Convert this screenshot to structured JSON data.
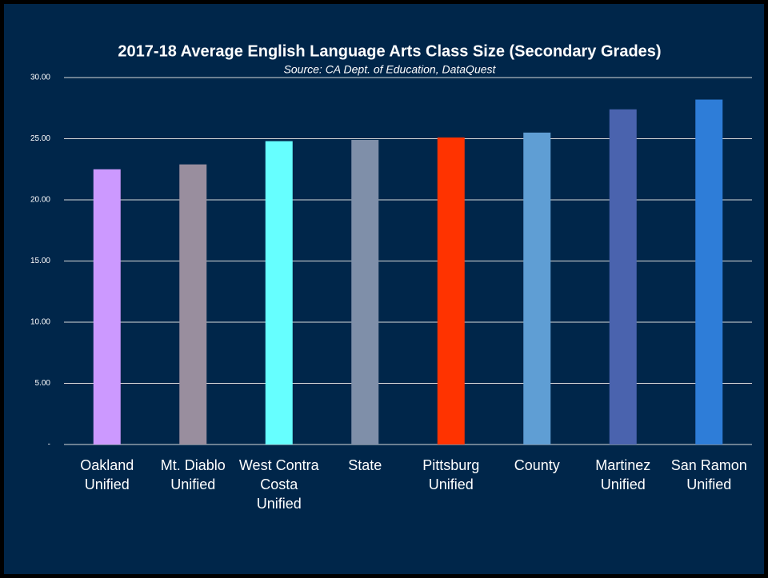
{
  "chart_data": {
    "type": "bar",
    "title": "2017-18 Average English Language Arts Class Size (Secondary Grades)",
    "subtitle": "Source: CA Dept. of Education, DataQuest",
    "categories": [
      "Oakland Unified",
      "Mt. Diablo Unified",
      "West Contra Costa Unified",
      "State",
      "Pittsburg Unified",
      "County",
      "Martinez Unified",
      "San Ramon Unified"
    ],
    "values": [
      22.5,
      22.9,
      24.8,
      24.9,
      25.1,
      25.5,
      27.4,
      28.2
    ],
    "colors": [
      "#cc99ff",
      "#998e9e",
      "#66ffff",
      "#7f8fa9",
      "#ff3300",
      "#5f9ed4",
      "#4a63ae",
      "#2e7dd8"
    ],
    "ylim": [
      0,
      30
    ],
    "yticks": [
      {
        "value": 0,
        "label": "-"
      },
      {
        "value": 5,
        "label": "5.00"
      },
      {
        "value": 10,
        "label": "10.00"
      },
      {
        "value": 15,
        "label": "15.00"
      },
      {
        "value": 20,
        "label": "20.00"
      },
      {
        "value": 25,
        "label": "25.00"
      },
      {
        "value": 30,
        "label": "30.00"
      }
    ],
    "grid": true
  }
}
